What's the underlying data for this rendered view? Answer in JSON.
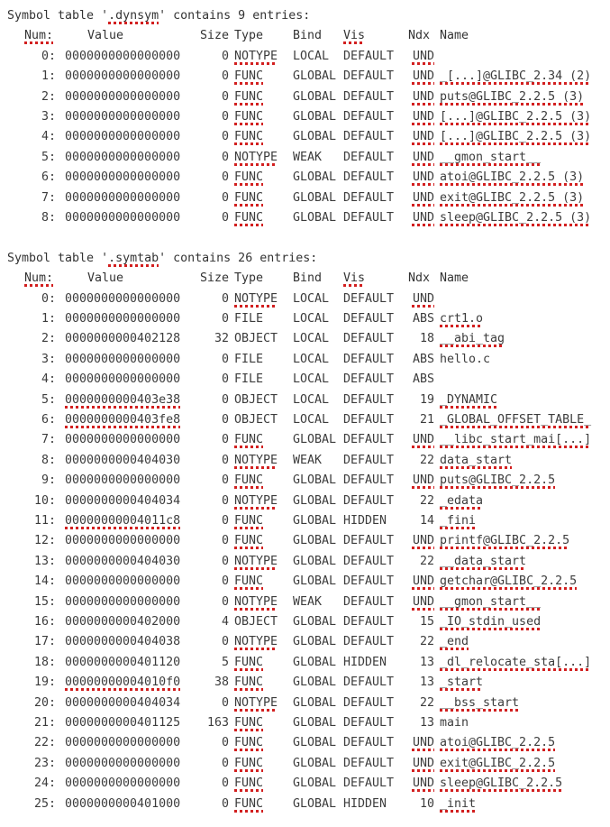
{
  "colors": {
    "background": "#ffffff",
    "text": "#3c3c3c",
    "spellcheck": "#d21f1f"
  },
  "tables": [
    {
      "title_pre": "Symbol table '",
      "title_name": ".dynsym",
      "title_post": "' contains 9 entries:",
      "headers": [
        "Num:",
        "Value",
        "Size",
        "Type",
        "Bind",
        "Vis",
        "Ndx",
        "Name"
      ],
      "rows": [
        [
          "0:",
          "0000000000000000",
          "0",
          "NOTYPE",
          "LOCAL",
          "DEFAULT",
          "UND",
          ""
        ],
        [
          "1:",
          "0000000000000000",
          "0",
          "FUNC",
          "GLOBAL",
          "DEFAULT",
          "UND",
          "_[...]@GLIBC_2.34 (2)"
        ],
        [
          "2:",
          "0000000000000000",
          "0",
          "FUNC",
          "GLOBAL",
          "DEFAULT",
          "UND",
          "puts@GLIBC_2.2.5 (3)"
        ],
        [
          "3:",
          "0000000000000000",
          "0",
          "FUNC",
          "GLOBAL",
          "DEFAULT",
          "UND",
          "[...]@GLIBC_2.2.5 (3)"
        ],
        [
          "4:",
          "0000000000000000",
          "0",
          "FUNC",
          "GLOBAL",
          "DEFAULT",
          "UND",
          "[...]@GLIBC_2.2.5 (3)"
        ],
        [
          "5:",
          "0000000000000000",
          "0",
          "NOTYPE",
          "WEAK",
          "DEFAULT",
          "UND",
          "__gmon_start__"
        ],
        [
          "6:",
          "0000000000000000",
          "0",
          "FUNC",
          "GLOBAL",
          "DEFAULT",
          "UND",
          "atoi@GLIBC_2.2.5 (3)"
        ],
        [
          "7:",
          "0000000000000000",
          "0",
          "FUNC",
          "GLOBAL",
          "DEFAULT",
          "UND",
          "exit@GLIBC_2.2.5 (3)"
        ],
        [
          "8:",
          "0000000000000000",
          "0",
          "FUNC",
          "GLOBAL",
          "DEFAULT",
          "UND",
          "sleep@GLIBC_2.2.5 (3)"
        ]
      ]
    },
    {
      "title_pre": "Symbol table '",
      "title_name": ".symtab",
      "title_post": "' contains 26 entries:",
      "headers": [
        "Num:",
        "Value",
        "Size",
        "Type",
        "Bind",
        "Vis",
        "Ndx",
        "Name"
      ],
      "rows": [
        [
          "0:",
          "0000000000000000",
          "0",
          "NOTYPE",
          "LOCAL",
          "DEFAULT",
          "UND",
          ""
        ],
        [
          "1:",
          "0000000000000000",
          "0",
          "FILE",
          "LOCAL",
          "DEFAULT",
          "ABS",
          "crt1.o"
        ],
        [
          "2:",
          "0000000000402128",
          "32",
          "OBJECT",
          "LOCAL",
          "DEFAULT",
          "18",
          "__abi_tag"
        ],
        [
          "3:",
          "0000000000000000",
          "0",
          "FILE",
          "LOCAL",
          "DEFAULT",
          "ABS",
          "hello.c"
        ],
        [
          "4:",
          "0000000000000000",
          "0",
          "FILE",
          "LOCAL",
          "DEFAULT",
          "ABS",
          ""
        ],
        [
          "5:",
          "0000000000403e38",
          "0",
          "OBJECT",
          "LOCAL",
          "DEFAULT",
          "19",
          "_DYNAMIC"
        ],
        [
          "6:",
          "0000000000403fe8",
          "0",
          "OBJECT",
          "LOCAL",
          "DEFAULT",
          "21",
          "_GLOBAL_OFFSET_TABLE_"
        ],
        [
          "7:",
          "0000000000000000",
          "0",
          "FUNC",
          "GLOBAL",
          "DEFAULT",
          "UND",
          "__libc_start_mai[...]"
        ],
        [
          "8:",
          "0000000000404030",
          "0",
          "NOTYPE",
          "WEAK",
          "DEFAULT",
          "22",
          "data_start"
        ],
        [
          "9:",
          "0000000000000000",
          "0",
          "FUNC",
          "GLOBAL",
          "DEFAULT",
          "UND",
          "puts@GLIBC_2.2.5"
        ],
        [
          "10:",
          "0000000000404034",
          "0",
          "NOTYPE",
          "GLOBAL",
          "DEFAULT",
          "22",
          "_edata"
        ],
        [
          "11:",
          "00000000004011c8",
          "0",
          "FUNC",
          "GLOBAL",
          "HIDDEN",
          "14",
          "_fini"
        ],
        [
          "12:",
          "0000000000000000",
          "0",
          "FUNC",
          "GLOBAL",
          "DEFAULT",
          "UND",
          "printf@GLIBC_2.2.5"
        ],
        [
          "13:",
          "0000000000404030",
          "0",
          "NOTYPE",
          "GLOBAL",
          "DEFAULT",
          "22",
          "__data_start"
        ],
        [
          "14:",
          "0000000000000000",
          "0",
          "FUNC",
          "GLOBAL",
          "DEFAULT",
          "UND",
          "getchar@GLIBC_2.2.5"
        ],
        [
          "15:",
          "0000000000000000",
          "0",
          "NOTYPE",
          "WEAK",
          "DEFAULT",
          "UND",
          "__gmon_start__"
        ],
        [
          "16:",
          "0000000000402000",
          "4",
          "OBJECT",
          "GLOBAL",
          "DEFAULT",
          "15",
          "_IO_stdin_used"
        ],
        [
          "17:",
          "0000000000404038",
          "0",
          "NOTYPE",
          "GLOBAL",
          "DEFAULT",
          "22",
          "_end"
        ],
        [
          "18:",
          "0000000000401120",
          "5",
          "FUNC",
          "GLOBAL",
          "HIDDEN",
          "13",
          "_dl_relocate_sta[...]"
        ],
        [
          "19:",
          "00000000004010f0",
          "38",
          "FUNC",
          "GLOBAL",
          "DEFAULT",
          "13",
          "_start"
        ],
        [
          "20:",
          "0000000000404034",
          "0",
          "NOTYPE",
          "GLOBAL",
          "DEFAULT",
          "22",
          "__bss_start"
        ],
        [
          "21:",
          "0000000000401125",
          "163",
          "FUNC",
          "GLOBAL",
          "DEFAULT",
          "13",
          "main"
        ],
        [
          "22:",
          "0000000000000000",
          "0",
          "FUNC",
          "GLOBAL",
          "DEFAULT",
          "UND",
          "atoi@GLIBC_2.2.5"
        ],
        [
          "23:",
          "0000000000000000",
          "0",
          "FUNC",
          "GLOBAL",
          "DEFAULT",
          "UND",
          "exit@GLIBC_2.2.5"
        ],
        [
          "24:",
          "0000000000000000",
          "0",
          "FUNC",
          "GLOBAL",
          "DEFAULT",
          "UND",
          "sleep@GLIBC_2.2.5"
        ],
        [
          "25:",
          "0000000000401000",
          "0",
          "FUNC",
          "GLOBAL",
          "HIDDEN",
          "10",
          "_init"
        ]
      ]
    }
  ]
}
